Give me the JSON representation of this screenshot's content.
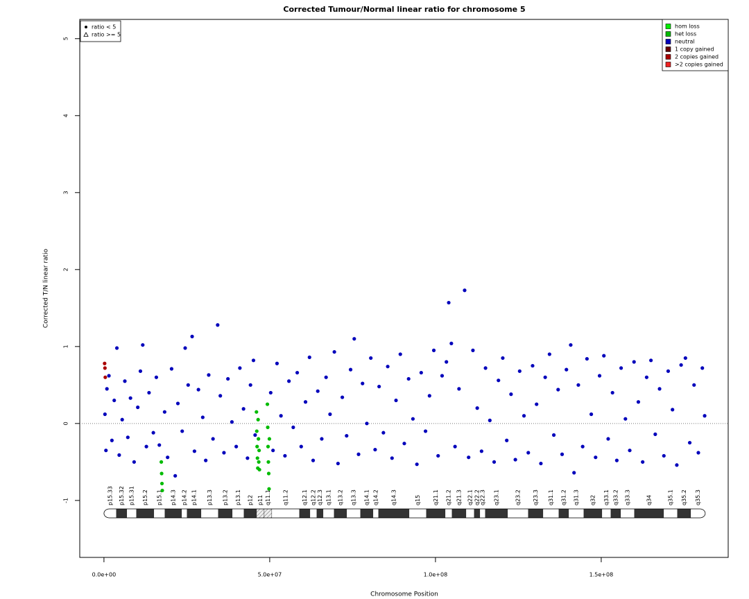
{
  "chart_data": {
    "type": "scatter",
    "title": "Corrected Tumour/Normal linear ratio for chromosome  5",
    "x_label": "Chromosome Position",
    "y_label": "Corrected T/N linear ratio",
    "xlim": [
      -7300000,
      188300000
    ],
    "ylim": [
      -1.74,
      5.25
    ],
    "xticks": [
      {
        "value": 0,
        "label": "0.0e+00"
      },
      {
        "value": 50000000,
        "label": "5.0e+07"
      },
      {
        "value": 100000000,
        "label": "1.0e+08"
      },
      {
        "value": 150000000,
        "label": "1.5e+08"
      }
    ],
    "yticks": [
      -1,
      0,
      1,
      2,
      3,
      4,
      5
    ],
    "reference_line": 0,
    "legend": "upper right",
    "shape_legend": [
      "ratio < 5",
      "ratio >= 5"
    ],
    "shape_legend_position": "upper left",
    "series": [
      {
        "name": "hom loss",
        "color": "#00ee00",
        "x": [],
        "values": []
      },
      {
        "name": "het loss",
        "color": "#00bb00",
        "x": [
          46000000.0,
          46100000.0,
          46200000.0,
          46300000.0,
          46400000.0,
          46500000.0,
          46600000.0,
          46700000.0,
          46800000.0,
          46900000.0,
          49300000.0,
          49400000.0,
          49500000.0,
          49600000.0,
          49700000.0,
          49800000.0,
          49900000.0,
          17300000.0,
          17400000.0,
          17500000.0,
          17600000.0
        ],
        "values": [
          0.15,
          -0.1,
          -0.3,
          -0.45,
          -0.58,
          0.05,
          -0.2,
          -0.5,
          -0.35,
          -0.6,
          0.25,
          -0.05,
          -0.3,
          -0.5,
          -0.65,
          -0.85,
          -0.2,
          -0.5,
          -0.65,
          -0.78,
          -0.87
        ]
      },
      {
        "name": "neutral",
        "color": "#0000bb",
        "x": [
          300000.0,
          600000.0,
          900000.0,
          1500000.0,
          2400000.0,
          3100000.0,
          3900000.0,
          4600000.0,
          5500000.0,
          6300000.0,
          7200000.0,
          8000000.0,
          9100000.0,
          10200000.0,
          11000000.0,
          11700000.0,
          12800000.0,
          13600000.0,
          14900000.0,
          15800000.0,
          16700000.0,
          18300000.0,
          19200000.0,
          20400000.0,
          21500000.0,
          22300000.0,
          23600000.0,
          24500000.0,
          25400000.0,
          26600000.0,
          27300000.0,
          28500000.0,
          29800000.0,
          30700000.0,
          31600000.0,
          32900000.0,
          34300000.0,
          35100000.0,
          36200000.0,
          37400000.0,
          38600000.0,
          39900000.0,
          41000000.0,
          42100000.0,
          43300000.0,
          44200000.0,
          45100000.0,
          45600000.0,
          50300000.0,
          51000000.0,
          52200000.0,
          53400000.0,
          54600000.0,
          55800000.0,
          57100000.0,
          58300000.0,
          59500000.0,
          60800000.0,
          62000000.0,
          63100000.0,
          64500000.0,
          65700000.0,
          67000000.0,
          68200000.0,
          69500000.0,
          70600000.0,
          71900000.0,
          73200000.0,
          74400000.0,
          75500000.0,
          76800000.0,
          78000000.0,
          79300000.0,
          80500000.0,
          81800000.0,
          83000000.0,
          84300000.0,
          85600000.0,
          86900000.0,
          88100000.0,
          89400000.0,
          90600000.0,
          91900000.0,
          93200000.0,
          94400000.0,
          95700000.0,
          97000000.0,
          98200000.0,
          99500000.0,
          100800000.0,
          102000000.0,
          103300000.0,
          104000000.0,
          104800000.0,
          105900000.0,
          107100000.0,
          108800000.0,
          110000000.0,
          111300000.0,
          112600000.0,
          113900000.0,
          115100000.0,
          116400000.0,
          117700000.0,
          119000000.0,
          120300000.0,
          121500000.0,
          122800000.0,
          124100000.0,
          125400000.0,
          126700000.0,
          128000000.0,
          129300000.0,
          130500000.0,
          131800000.0,
          133100000.0,
          134400000.0,
          135700000.0,
          137000000.0,
          138200000.0,
          139500000.0,
          140800000.0,
          141800000.0,
          143100000.0,
          144400000.0,
          145700000.0,
          147000000.0,
          148300000.0,
          149500000.0,
          150800000.0,
          152100000.0,
          153400000.0,
          154700000.0,
          156000000.0,
          157300000.0,
          158600000.0,
          159900000.0,
          161200000.0,
          162500000.0,
          163700000.0,
          165000000.0,
          166300000.0,
          167600000.0,
          168900000.0,
          170200000.0,
          171500000.0,
          172800000.0,
          174100000.0,
          175400000.0,
          176700000.0,
          178000000.0,
          179300000.0,
          180500000.0,
          181200000.0
        ],
        "values": [
          0.12,
          -0.35,
          0.45,
          0.62,
          -0.22,
          0.3,
          0.98,
          -0.41,
          0.05,
          0.55,
          -0.18,
          0.33,
          -0.5,
          0.21,
          0.68,
          1.02,
          -0.3,
          0.4,
          -0.12,
          0.6,
          -0.28,
          0.15,
          -0.44,
          0.71,
          -0.68,
          0.26,
          -0.1,
          0.98,
          0.5,
          1.13,
          -0.36,
          0.44,
          0.08,
          -0.48,
          0.63,
          -0.2,
          1.28,
          0.36,
          -0.38,
          0.58,
          0.02,
          -0.3,
          0.72,
          0.19,
          -0.45,
          0.5,
          0.82,
          -0.15,
          0.4,
          -0.35,
          0.78,
          0.1,
          -0.42,
          0.55,
          -0.05,
          0.66,
          -0.3,
          0.28,
          0.86,
          -0.48,
          0.42,
          -0.2,
          0.6,
          0.12,
          0.93,
          -0.52,
          0.34,
          -0.16,
          0.7,
          1.1,
          -0.4,
          0.52,
          0.0,
          0.85,
          -0.34,
          0.48,
          -0.12,
          0.74,
          -0.45,
          0.3,
          0.9,
          -0.26,
          0.58,
          0.06,
          -0.53,
          0.66,
          -0.1,
          0.36,
          0.95,
          -0.42,
          0.62,
          0.8,
          1.57,
          1.04,
          -0.3,
          0.45,
          1.73,
          -0.44,
          0.95,
          0.2,
          -0.36,
          0.72,
          0.04,
          -0.5,
          0.56,
          0.85,
          -0.22,
          0.38,
          -0.47,
          0.68,
          0.1,
          -0.38,
          0.75,
          0.25,
          -0.52,
          0.6,
          0.9,
          -0.15,
          0.44,
          -0.4,
          0.7,
          1.02,
          -0.64,
          0.5,
          -0.3,
          0.84,
          0.12,
          -0.44,
          0.62,
          0.88,
          -0.2,
          0.4,
          -0.48,
          0.72,
          0.06,
          -0.35,
          0.8,
          0.28,
          -0.5,
          0.6,
          0.82,
          -0.14,
          0.45,
          -0.42,
          0.68,
          0.18,
          -0.54,
          0.76,
          0.85,
          -0.25,
          0.5,
          -0.38,
          0.72,
          0.1
        ]
      },
      {
        "name": "1 copy gained",
        "color": "#660000",
        "x": [],
        "values": []
      },
      {
        "name": "2 copies gained",
        "color": "#aa0000",
        "x": [
          200000.0,
          300000.0,
          400000.0
        ],
        "values": [
          0.78,
          0.72,
          0.6
        ]
      },
      {
        "name": ">2 copies gained",
        "color": "#ee2222",
        "x": [],
        "values": []
      }
    ],
    "bands": [
      {
        "name": "p15.33",
        "start": 0,
        "end": 3770000,
        "stain": "gneg"
      },
      {
        "name": "p15.32",
        "start": 3770000,
        "end": 6900000,
        "stain": "gpos"
      },
      {
        "name": "p15.31",
        "start": 6900000,
        "end": 9830000,
        "stain": "gneg"
      },
      {
        "name": "p15.2",
        "start": 9830000,
        "end": 15060000,
        "stain": "gpos"
      },
      {
        "name": "p15.1",
        "start": 15060000,
        "end": 18410000,
        "stain": "gneg"
      },
      {
        "name": "p14.3",
        "start": 18410000,
        "end": 23430000,
        "stain": "gpos"
      },
      {
        "name": "p14.2",
        "start": 23430000,
        "end": 25100000,
        "stain": "gneg"
      },
      {
        "name": "p14.1",
        "start": 25100000,
        "end": 29290000,
        "stain": "gpos"
      },
      {
        "name": "p13.3",
        "start": 29290000,
        "end": 34520000,
        "stain": "gneg"
      },
      {
        "name": "p13.2",
        "start": 34520000,
        "end": 38700000,
        "stain": "gpos"
      },
      {
        "name": "p13.1",
        "start": 38700000,
        "end": 42260000,
        "stain": "gneg"
      },
      {
        "name": "p12",
        "start": 42260000,
        "end": 46030000,
        "stain": "gpos"
      },
      {
        "name": "p11",
        "start": 46030000,
        "end": 48330000,
        "stain": "acen"
      },
      {
        "name": "q11.1",
        "start": 48330000,
        "end": 50630000,
        "stain": "acen"
      },
      {
        "name": "q11.2",
        "start": 50630000,
        "end": 59000000,
        "stain": "gneg"
      },
      {
        "name": "q12.1",
        "start": 59000000,
        "end": 62140000,
        "stain": "gpos"
      },
      {
        "name": "q12.2",
        "start": 62140000,
        "end": 64230000,
        "stain": "gneg"
      },
      {
        "name": "q12.3",
        "start": 64230000,
        "end": 66110000,
        "stain": "gpos"
      },
      {
        "name": "q13.1",
        "start": 66110000,
        "end": 69460000,
        "stain": "gneg"
      },
      {
        "name": "q13.2",
        "start": 69460000,
        "end": 73220000,
        "stain": "gpos"
      },
      {
        "name": "q13.3",
        "start": 73220000,
        "end": 77410000,
        "stain": "gneg"
      },
      {
        "name": "q14.1",
        "start": 77410000,
        "end": 81170000,
        "stain": "gpos"
      },
      {
        "name": "q14.2",
        "start": 81170000,
        "end": 82850000,
        "stain": "gneg"
      },
      {
        "name": "q14.3",
        "start": 82850000,
        "end": 92050000,
        "stain": "gpos"
      },
      {
        "name": "q15",
        "start": 92050000,
        "end": 97280000,
        "stain": "gneg"
      },
      {
        "name": "q21.1",
        "start": 97280000,
        "end": 102930000,
        "stain": "gpos"
      },
      {
        "name": "q21.2",
        "start": 102930000,
        "end": 105020000,
        "stain": "gneg"
      },
      {
        "name": "q21.3",
        "start": 105020000,
        "end": 109210000,
        "stain": "gpos"
      },
      {
        "name": "q22.1",
        "start": 109210000,
        "end": 111720000,
        "stain": "gneg"
      },
      {
        "name": "q22.2",
        "start": 111720000,
        "end": 113390000,
        "stain": "gpos"
      },
      {
        "name": "q22.3",
        "start": 113390000,
        "end": 115060000,
        "stain": "gneg"
      },
      {
        "name": "q23.1",
        "start": 115060000,
        "end": 121760000,
        "stain": "gpos"
      },
      {
        "name": "q23.2",
        "start": 121760000,
        "end": 128030000,
        "stain": "gneg"
      },
      {
        "name": "q23.3",
        "start": 128030000,
        "end": 132430000,
        "stain": "gpos"
      },
      {
        "name": "q31.1",
        "start": 132430000,
        "end": 137240000,
        "stain": "gneg"
      },
      {
        "name": "q31.2",
        "start": 137240000,
        "end": 140170000,
        "stain": "gpos"
      },
      {
        "name": "q31.3",
        "start": 140170000,
        "end": 144770000,
        "stain": "gneg"
      },
      {
        "name": "q32",
        "start": 144770000,
        "end": 150210000,
        "stain": "gpos"
      },
      {
        "name": "q33.1",
        "start": 150210000,
        "end": 152930000,
        "stain": "gneg"
      },
      {
        "name": "q33.2",
        "start": 152930000,
        "end": 155860000,
        "stain": "gpos"
      },
      {
        "name": "q33.3",
        "start": 155860000,
        "end": 160040000,
        "stain": "gneg"
      },
      {
        "name": "q34",
        "start": 160040000,
        "end": 168830000,
        "stain": "gpos"
      },
      {
        "name": "q35.1",
        "start": 168830000,
        "end": 173010000,
        "stain": "gneg"
      },
      {
        "name": "q35.2",
        "start": 173010000,
        "end": 176990000,
        "stain": "gpos"
      },
      {
        "name": "q35.3",
        "start": 176990000,
        "end": 181380000,
        "stain": "gneg"
      }
    ]
  }
}
